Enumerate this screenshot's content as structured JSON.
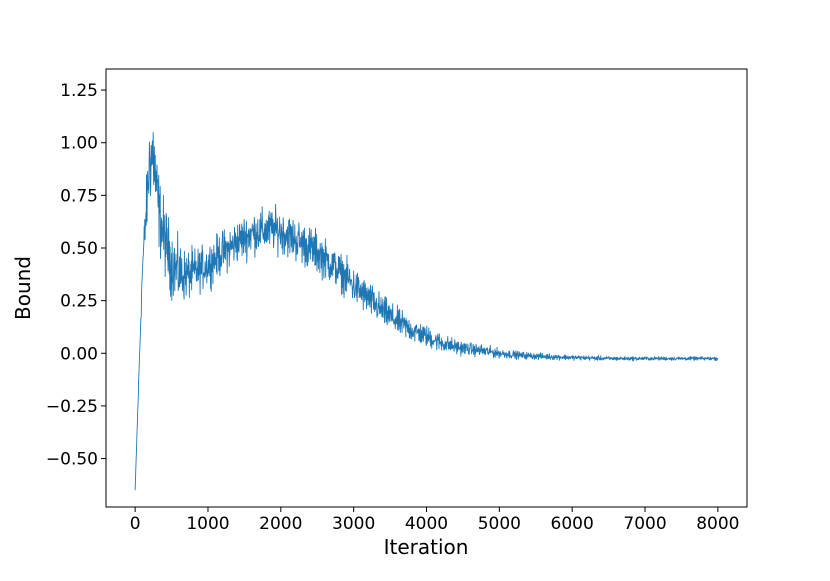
{
  "chart_data": {
    "type": "line",
    "title": "",
    "xlabel": "Iteration",
    "ylabel": "Bound",
    "xlim": [
      -400,
      8400
    ],
    "ylim": [
      -0.73,
      1.35
    ],
    "xticks": [
      0,
      1000,
      2000,
      3000,
      4000,
      5000,
      6000,
      7000,
      8000
    ],
    "xtick_labels": [
      "0",
      "1000",
      "2000",
      "3000",
      "4000",
      "5000",
      "6000",
      "7000",
      "8000"
    ],
    "yticks": [
      -0.5,
      -0.25,
      0.0,
      0.25,
      0.5,
      0.75,
      1.0,
      1.25
    ],
    "ytick_labels": [
      "−0.50",
      "−0.25",
      "0.00",
      "0.25",
      "0.50",
      "0.75",
      "1.00",
      "1.25"
    ],
    "grid": false,
    "legend": "none",
    "line_color": "#1f77b4",
    "series": [
      {
        "x": [
          0,
          100,
          200,
          250,
          300,
          350,
          400,
          500,
          600,
          700,
          800,
          900,
          1000,
          1100,
          1200,
          1300,
          1400,
          1500,
          1600,
          1700,
          1800,
          1900,
          2000,
          2100,
          2200,
          2300,
          2400,
          2500,
          2600,
          2700,
          2800,
          2900,
          3000,
          3200,
          3400,
          3600,
          3800,
          4000,
          4200,
          4400,
          4600,
          4800,
          5000,
          5300,
          5600,
          6000,
          6500,
          7000,
          7500,
          8000
        ],
        "y": [
          -0.65,
          0.4,
          0.92,
          0.95,
          0.75,
          0.62,
          0.55,
          0.43,
          0.38,
          0.37,
          0.38,
          0.4,
          0.42,
          0.45,
          0.48,
          0.5,
          0.53,
          0.55,
          0.57,
          0.58,
          0.58,
          0.59,
          0.58,
          0.56,
          0.54,
          0.52,
          0.5,
          0.48,
          0.45,
          0.42,
          0.39,
          0.36,
          0.32,
          0.26,
          0.2,
          0.15,
          0.11,
          0.08,
          0.05,
          0.03,
          0.02,
          0.01,
          0.0,
          -0.01,
          -0.015,
          -0.02,
          -0.025,
          -0.025,
          -0.025,
          -0.025
        ],
        "noise": [
          0,
          0.05,
          0.14,
          0.16,
          0.14,
          0.12,
          0.12,
          0.11,
          0.1,
          0.08,
          0.08,
          0.07,
          0.07,
          0.07,
          0.07,
          0.07,
          0.07,
          0.07,
          0.07,
          0.07,
          0.07,
          0.07,
          0.07,
          0.07,
          0.07,
          0.07,
          0.07,
          0.07,
          0.065,
          0.06,
          0.06,
          0.06,
          0.06,
          0.055,
          0.05,
          0.045,
          0.04,
          0.035,
          0.03,
          0.025,
          0.02,
          0.02,
          0.015,
          0.012,
          0.01,
          0.008,
          0.007,
          0.006,
          0.006,
          0.006
        ]
      }
    ]
  }
}
